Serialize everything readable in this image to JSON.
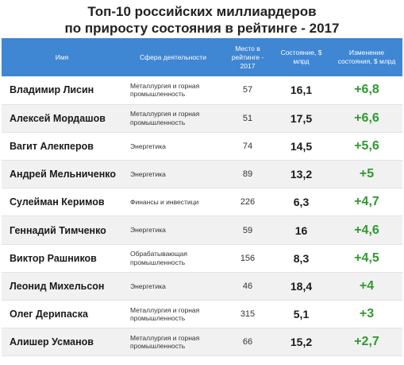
{
  "title": {
    "line1": "Топ-10 российских миллиардеров",
    "line2": "по приросту состояния в рейтинге - 2017"
  },
  "columns": {
    "name": "Имя",
    "sphere": "Сфера деятельности",
    "rank": "Место в рейтинге - 2017",
    "wealth": "Состояние, $ млрд",
    "change": "Изменение состояния, $ млрд"
  },
  "colors": {
    "header_bg": "#3f86d3",
    "change_text": "#2e9a2e"
  },
  "rows": [
    {
      "name": "Владимир Лисин",
      "sphere": "Металлургия и горная промышленность",
      "rank": "57",
      "wealth": "16,1",
      "change": "+6,8"
    },
    {
      "name": "Алексей Мордашов",
      "sphere": "Металлургия и горная промышленность",
      "rank": "51",
      "wealth": "17,5",
      "change": "+6,6"
    },
    {
      "name": "Вагит Алекперов",
      "sphere": "Энергетика",
      "rank": "74",
      "wealth": "14,5",
      "change": "+5,6"
    },
    {
      "name": "Андрей Мельниченко",
      "sphere": "Энергетика",
      "rank": "89",
      "wealth": "13,2",
      "change": "+5"
    },
    {
      "name": "Сулейман Керимов",
      "sphere": "Финансы и инвестици",
      "rank": "226",
      "wealth": "6,3",
      "change": "+4,7"
    },
    {
      "name": "Геннадий Тимченко",
      "sphere": "Энергетика",
      "rank": "59",
      "wealth": "16",
      "change": "+4,6"
    },
    {
      "name": "Виктор Рашников",
      "sphere": "Обрабатывающая промышленность",
      "rank": "156",
      "wealth": "8,3",
      "change": "+4,5"
    },
    {
      "name": "Леонид Михельсон",
      "sphere": "Энергетика",
      "rank": "46",
      "wealth": "18,4",
      "change": "+4"
    },
    {
      "name": "Олег Дерипаска",
      "sphere": "Металлургия и горная промышленность",
      "rank": "315",
      "wealth": "5,1",
      "change": "+3"
    },
    {
      "name": "Алишер Усманов",
      "sphere": "Металлургия и горная промышленность",
      "rank": "66",
      "wealth": "15,2",
      "change": "+2,7"
    }
  ]
}
